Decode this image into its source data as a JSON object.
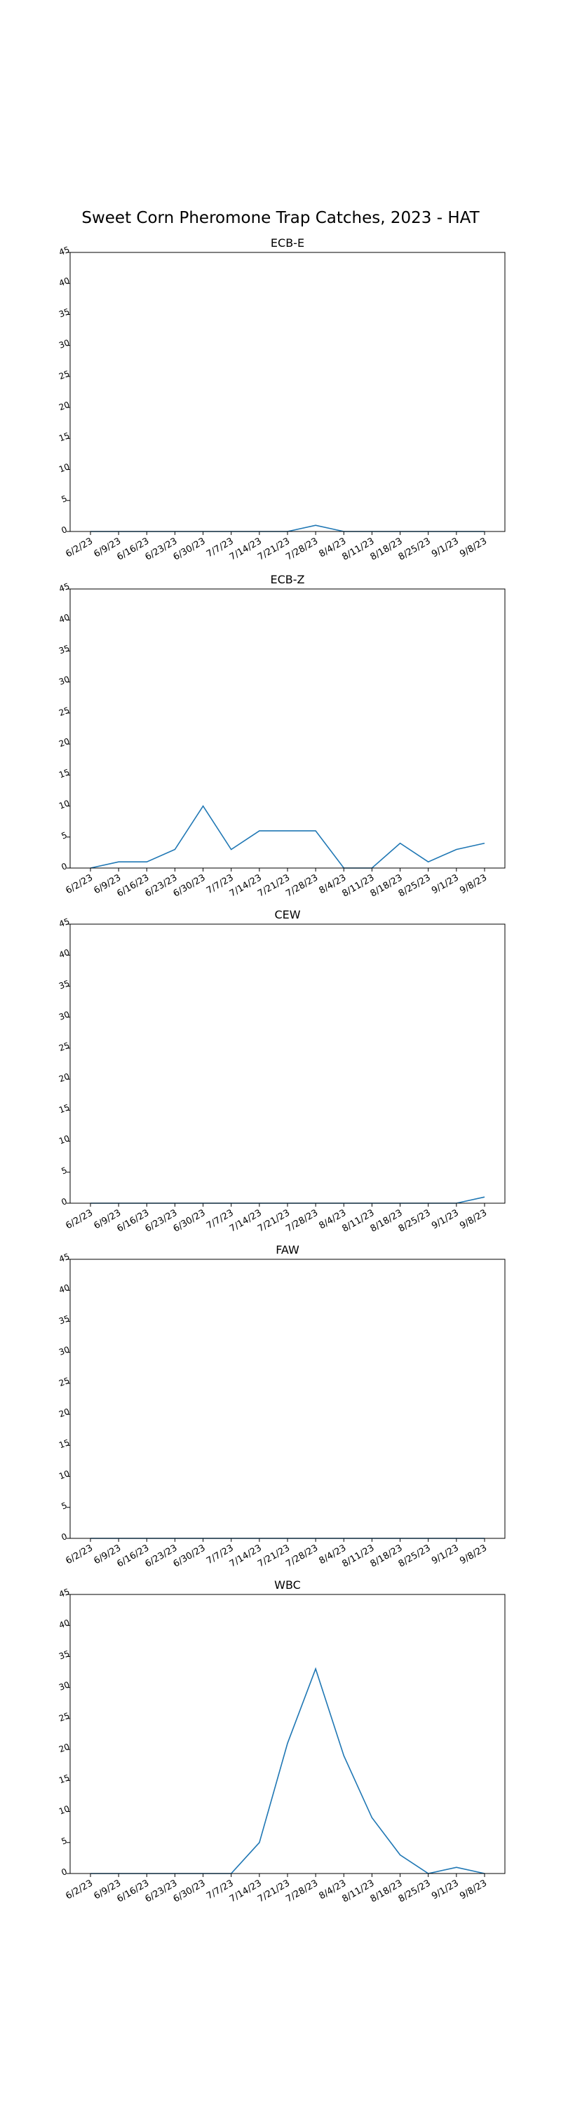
{
  "suptitle": "Sweet Corn Pheromone Trap Catches, 2023 - HAT",
  "line_color": "#1f77b4",
  "chart_data": [
    {
      "type": "line",
      "title": "ECB-E",
      "categories": [
        "6/2/23",
        "6/9/23",
        "6/16/23",
        "6/23/23",
        "6/30/23",
        "7/7/23",
        "7/14/23",
        "7/21/23",
        "7/28/23",
        "8/4/23",
        "8/11/23",
        "8/18/23",
        "8/25/23",
        "9/1/23",
        "9/8/23"
      ],
      "values": [
        0,
        0,
        0,
        0,
        0,
        0,
        0,
        0,
        1,
        0,
        0,
        0,
        0,
        0,
        0
      ],
      "ylim": [
        0,
        45
      ],
      "yticks": [
        0,
        5,
        10,
        15,
        20,
        25,
        30,
        35,
        40,
        45
      ],
      "grid": false
    },
    {
      "type": "line",
      "title": "ECB-Z",
      "categories": [
        "6/2/23",
        "6/9/23",
        "6/16/23",
        "6/23/23",
        "6/30/23",
        "7/7/23",
        "7/14/23",
        "7/21/23",
        "7/28/23",
        "8/4/23",
        "8/11/23",
        "8/18/23",
        "8/25/23",
        "9/1/23",
        "9/8/23"
      ],
      "values": [
        0,
        1,
        1,
        3,
        10,
        3,
        6,
        6,
        6,
        0,
        0,
        4,
        1,
        3,
        4
      ],
      "ylim": [
        0,
        45
      ],
      "yticks": [
        0,
        5,
        10,
        15,
        20,
        25,
        30,
        35,
        40,
        45
      ],
      "grid": false
    },
    {
      "type": "line",
      "title": "CEW",
      "categories": [
        "6/2/23",
        "6/9/23",
        "6/16/23",
        "6/23/23",
        "6/30/23",
        "7/7/23",
        "7/14/23",
        "7/21/23",
        "7/28/23",
        "8/4/23",
        "8/11/23",
        "8/18/23",
        "8/25/23",
        "9/1/23",
        "9/8/23"
      ],
      "values": [
        0,
        0,
        0,
        0,
        0,
        0,
        0,
        0,
        0,
        0,
        0,
        0,
        0,
        0,
        1
      ],
      "ylim": [
        0,
        45
      ],
      "yticks": [
        0,
        5,
        10,
        15,
        20,
        25,
        30,
        35,
        40,
        45
      ],
      "grid": false
    },
    {
      "type": "line",
      "title": "FAW",
      "categories": [
        "6/2/23",
        "6/9/23",
        "6/16/23",
        "6/23/23",
        "6/30/23",
        "7/7/23",
        "7/14/23",
        "7/21/23",
        "7/28/23",
        "8/4/23",
        "8/11/23",
        "8/18/23",
        "8/25/23",
        "9/1/23",
        "9/8/23"
      ],
      "values": [
        0,
        0,
        0,
        0,
        0,
        0,
        0,
        0,
        0,
        0,
        0,
        0,
        0,
        0,
        0
      ],
      "ylim": [
        0,
        45
      ],
      "yticks": [
        0,
        5,
        10,
        15,
        20,
        25,
        30,
        35,
        40,
        45
      ],
      "grid": false
    },
    {
      "type": "line",
      "title": "WBC",
      "categories": [
        "6/2/23",
        "6/9/23",
        "6/16/23",
        "6/23/23",
        "6/30/23",
        "7/7/23",
        "7/14/23",
        "7/21/23",
        "7/28/23",
        "8/4/23",
        "8/11/23",
        "8/18/23",
        "8/25/23",
        "9/1/23",
        "9/8/23"
      ],
      "values": [
        0,
        0,
        0,
        0,
        0,
        0,
        5,
        21,
        33,
        19,
        9,
        3,
        0,
        1,
        0
      ],
      "ylim": [
        0,
        45
      ],
      "yticks": [
        0,
        5,
        10,
        15,
        20,
        25,
        30,
        35,
        40,
        45
      ],
      "grid": false
    }
  ]
}
